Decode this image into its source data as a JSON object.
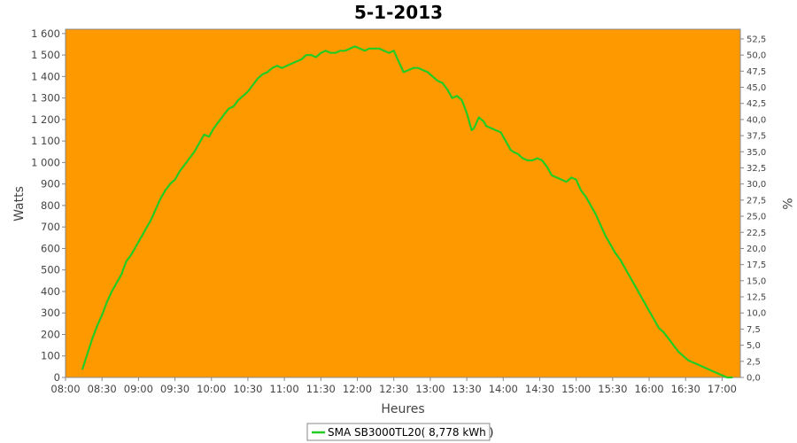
{
  "chart_data": {
    "type": "line",
    "title": "5-1-2013",
    "xlabel": "Heures",
    "ylabel": "Watts",
    "y2label": "%",
    "xlim": [
      "08:00",
      "17:15"
    ],
    "ylim": [
      0,
      1620
    ],
    "y2lim": [
      0,
      54.0
    ],
    "x_ticks": [
      "08:00",
      "08:30",
      "09:00",
      "09:30",
      "10:00",
      "10:30",
      "11:00",
      "11:30",
      "12:00",
      "12:30",
      "13:00",
      "13:30",
      "14:00",
      "14:30",
      "15:00",
      "15:30",
      "16:00",
      "16:30",
      "17:00"
    ],
    "y_ticks": [
      "0",
      "100",
      "200",
      "300",
      "400",
      "500",
      "600",
      "700",
      "800",
      "900",
      "1 000",
      "1 100",
      "1 200",
      "1 300",
      "1 400",
      "1 500",
      "1 600"
    ],
    "y2_ticks": [
      "0,0",
      "2,5",
      "5,0",
      "7,5",
      "10,0",
      "12,5",
      "15,0",
      "17,5",
      "20,0",
      "22,5",
      "25,0",
      "27,5",
      "30,0",
      "32,5",
      "35,0",
      "37,5",
      "40,0",
      "42,5",
      "45,0",
      "47,5",
      "50,0",
      "52,5"
    ],
    "grid": false,
    "legend_position": "bottom",
    "background_color": "#ff9900",
    "line_color": "#22cc22",
    "series": [
      {
        "name": "SMA SB3000TL20( 8,778 kWh )",
        "x": [
          "08:14",
          "08:18",
          "08:22",
          "08:26",
          "08:30",
          "08:34",
          "08:38",
          "08:42",
          "08:46",
          "08:50",
          "08:54",
          "08:58",
          "09:02",
          "09:06",
          "09:10",
          "09:14",
          "09:18",
          "09:22",
          "09:26",
          "09:30",
          "09:34",
          "09:38",
          "09:42",
          "09:46",
          "09:50",
          "09:54",
          "09:58",
          "10:02",
          "10:06",
          "10:10",
          "10:14",
          "10:18",
          "10:22",
          "10:26",
          "10:30",
          "10:34",
          "10:38",
          "10:42",
          "10:46",
          "10:50",
          "10:54",
          "10:58",
          "11:02",
          "11:06",
          "11:10",
          "11:14",
          "11:18",
          "11:22",
          "11:26",
          "11:30",
          "11:34",
          "11:38",
          "11:42",
          "11:46",
          "11:50",
          "11:54",
          "11:58",
          "12:02",
          "12:06",
          "12:10",
          "12:14",
          "12:18",
          "12:22",
          "12:26",
          "12:30",
          "12:34",
          "12:38",
          "12:42",
          "12:46",
          "12:50",
          "12:54",
          "12:58",
          "13:02",
          "13:06",
          "13:10",
          "13:14",
          "13:18",
          "13:22",
          "13:26",
          "13:30",
          "13:34",
          "13:36",
          "13:40",
          "13:44",
          "13:46",
          "13:50",
          "13:54",
          "13:58",
          "14:02",
          "14:06",
          "14:08",
          "14:12",
          "14:16",
          "14:20",
          "14:24",
          "14:28",
          "14:32",
          "14:36",
          "14:40",
          "14:44",
          "14:48",
          "14:52",
          "14:56",
          "15:00",
          "15:04",
          "15:08",
          "15:12",
          "15:16",
          "15:20",
          "15:24",
          "15:28",
          "15:32",
          "15:36",
          "15:40",
          "15:44",
          "15:48",
          "15:52",
          "15:56",
          "16:00",
          "16:04",
          "16:08",
          "16:12",
          "16:16",
          "16:20",
          "16:24",
          "16:28",
          "16:32",
          "16:36",
          "16:40",
          "16:44",
          "16:48",
          "16:52",
          "16:56",
          "17:00",
          "17:04",
          "17:08"
        ],
        "values": [
          40,
          110,
          180,
          240,
          290,
          350,
          400,
          440,
          480,
          540,
          570,
          610,
          650,
          690,
          730,
          780,
          830,
          870,
          900,
          920,
          960,
          990,
          1020,
          1050,
          1090,
          1130,
          1120,
          1160,
          1190,
          1220,
          1250,
          1260,
          1290,
          1310,
          1330,
          1360,
          1390,
          1410,
          1420,
          1440,
          1450,
          1440,
          1450,
          1460,
          1470,
          1480,
          1500,
          1500,
          1490,
          1510,
          1520,
          1510,
          1510,
          1520,
          1520,
          1530,
          1540,
          1530,
          1520,
          1530,
          1530,
          1530,
          1520,
          1510,
          1520,
          1470,
          1420,
          1430,
          1440,
          1440,
          1430,
          1420,
          1400,
          1380,
          1370,
          1340,
          1300,
          1310,
          1290,
          1230,
          1150,
          1160,
          1210,
          1190,
          1170,
          1160,
          1150,
          1140,
          1100,
          1060,
          1050,
          1040,
          1020,
          1010,
          1010,
          1020,
          1010,
          980,
          940,
          930,
          920,
          910,
          930,
          920,
          870,
          840,
          800,
          760,
          710,
          660,
          620,
          580,
          550,
          510,
          470,
          430,
          390,
          350,
          310,
          270,
          230,
          210,
          180,
          150,
          120,
          100,
          80,
          70,
          60,
          50,
          40,
          30,
          20,
          10,
          0,
          0
        ]
      }
    ]
  }
}
